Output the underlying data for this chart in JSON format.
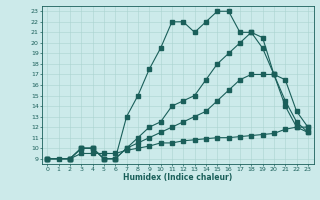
{
  "xlabel": "Humidex (Indice chaleur)",
  "bg_color": "#cceaea",
  "line_color": "#1a5f5a",
  "grid_color": "#aad4d0",
  "xlim": [
    -0.5,
    23.5
  ],
  "ylim": [
    8.5,
    23.5
  ],
  "xticks": [
    0,
    1,
    2,
    3,
    4,
    5,
    6,
    7,
    8,
    9,
    10,
    11,
    12,
    13,
    14,
    15,
    16,
    17,
    18,
    19,
    20,
    21,
    22,
    23
  ],
  "yticks": [
    9,
    10,
    11,
    12,
    13,
    14,
    15,
    16,
    17,
    18,
    19,
    20,
    21,
    22,
    23
  ],
  "line1_x": [
    0,
    1,
    2,
    3,
    4,
    5,
    6,
    7,
    8,
    9,
    10,
    11,
    12,
    13,
    14,
    15,
    16,
    17,
    18,
    19,
    20,
    21,
    22,
    23
  ],
  "line1_y": [
    9.0,
    9.0,
    9.0,
    9.5,
    9.5,
    9.5,
    9.5,
    9.8,
    10.0,
    10.2,
    10.5,
    10.5,
    10.7,
    10.8,
    10.9,
    11.0,
    11.0,
    11.1,
    11.2,
    11.3,
    11.4,
    11.8,
    12.0,
    12.0
  ],
  "line2_x": [
    0,
    2,
    3,
    4,
    5,
    6,
    7,
    8,
    9,
    10,
    11,
    12,
    13,
    14,
    15,
    16,
    17,
    18,
    19,
    20,
    21,
    22,
    23
  ],
  "line2_y": [
    9,
    9,
    10,
    10,
    9,
    9,
    13,
    15,
    17.5,
    19.5,
    22,
    22,
    21,
    22,
    23,
    23,
    21,
    21,
    19.5,
    17,
    14,
    12,
    11.5
  ],
  "line3_x": [
    0,
    2,
    3,
    4,
    5,
    6,
    7,
    8,
    9,
    10,
    11,
    12,
    13,
    14,
    15,
    16,
    17,
    18,
    19,
    20,
    21,
    22,
    23
  ],
  "line3_y": [
    9,
    9,
    10,
    10,
    9,
    9,
    10,
    11,
    12,
    12.5,
    14,
    14.5,
    15,
    16.5,
    18,
    19,
    20,
    21,
    20.5,
    17,
    14.5,
    12.5,
    11.5
  ],
  "line4_x": [
    0,
    2,
    3,
    4,
    5,
    6,
    7,
    8,
    9,
    10,
    11,
    12,
    13,
    14,
    15,
    16,
    17,
    18,
    19,
    20,
    21,
    22,
    23
  ],
  "line4_y": [
    9,
    9,
    10,
    10,
    9,
    9,
    10,
    10.5,
    11,
    11.5,
    12,
    12.5,
    13,
    13.5,
    14.5,
    15.5,
    16.5,
    17,
    17,
    17,
    16.5,
    13.5,
    12
  ]
}
